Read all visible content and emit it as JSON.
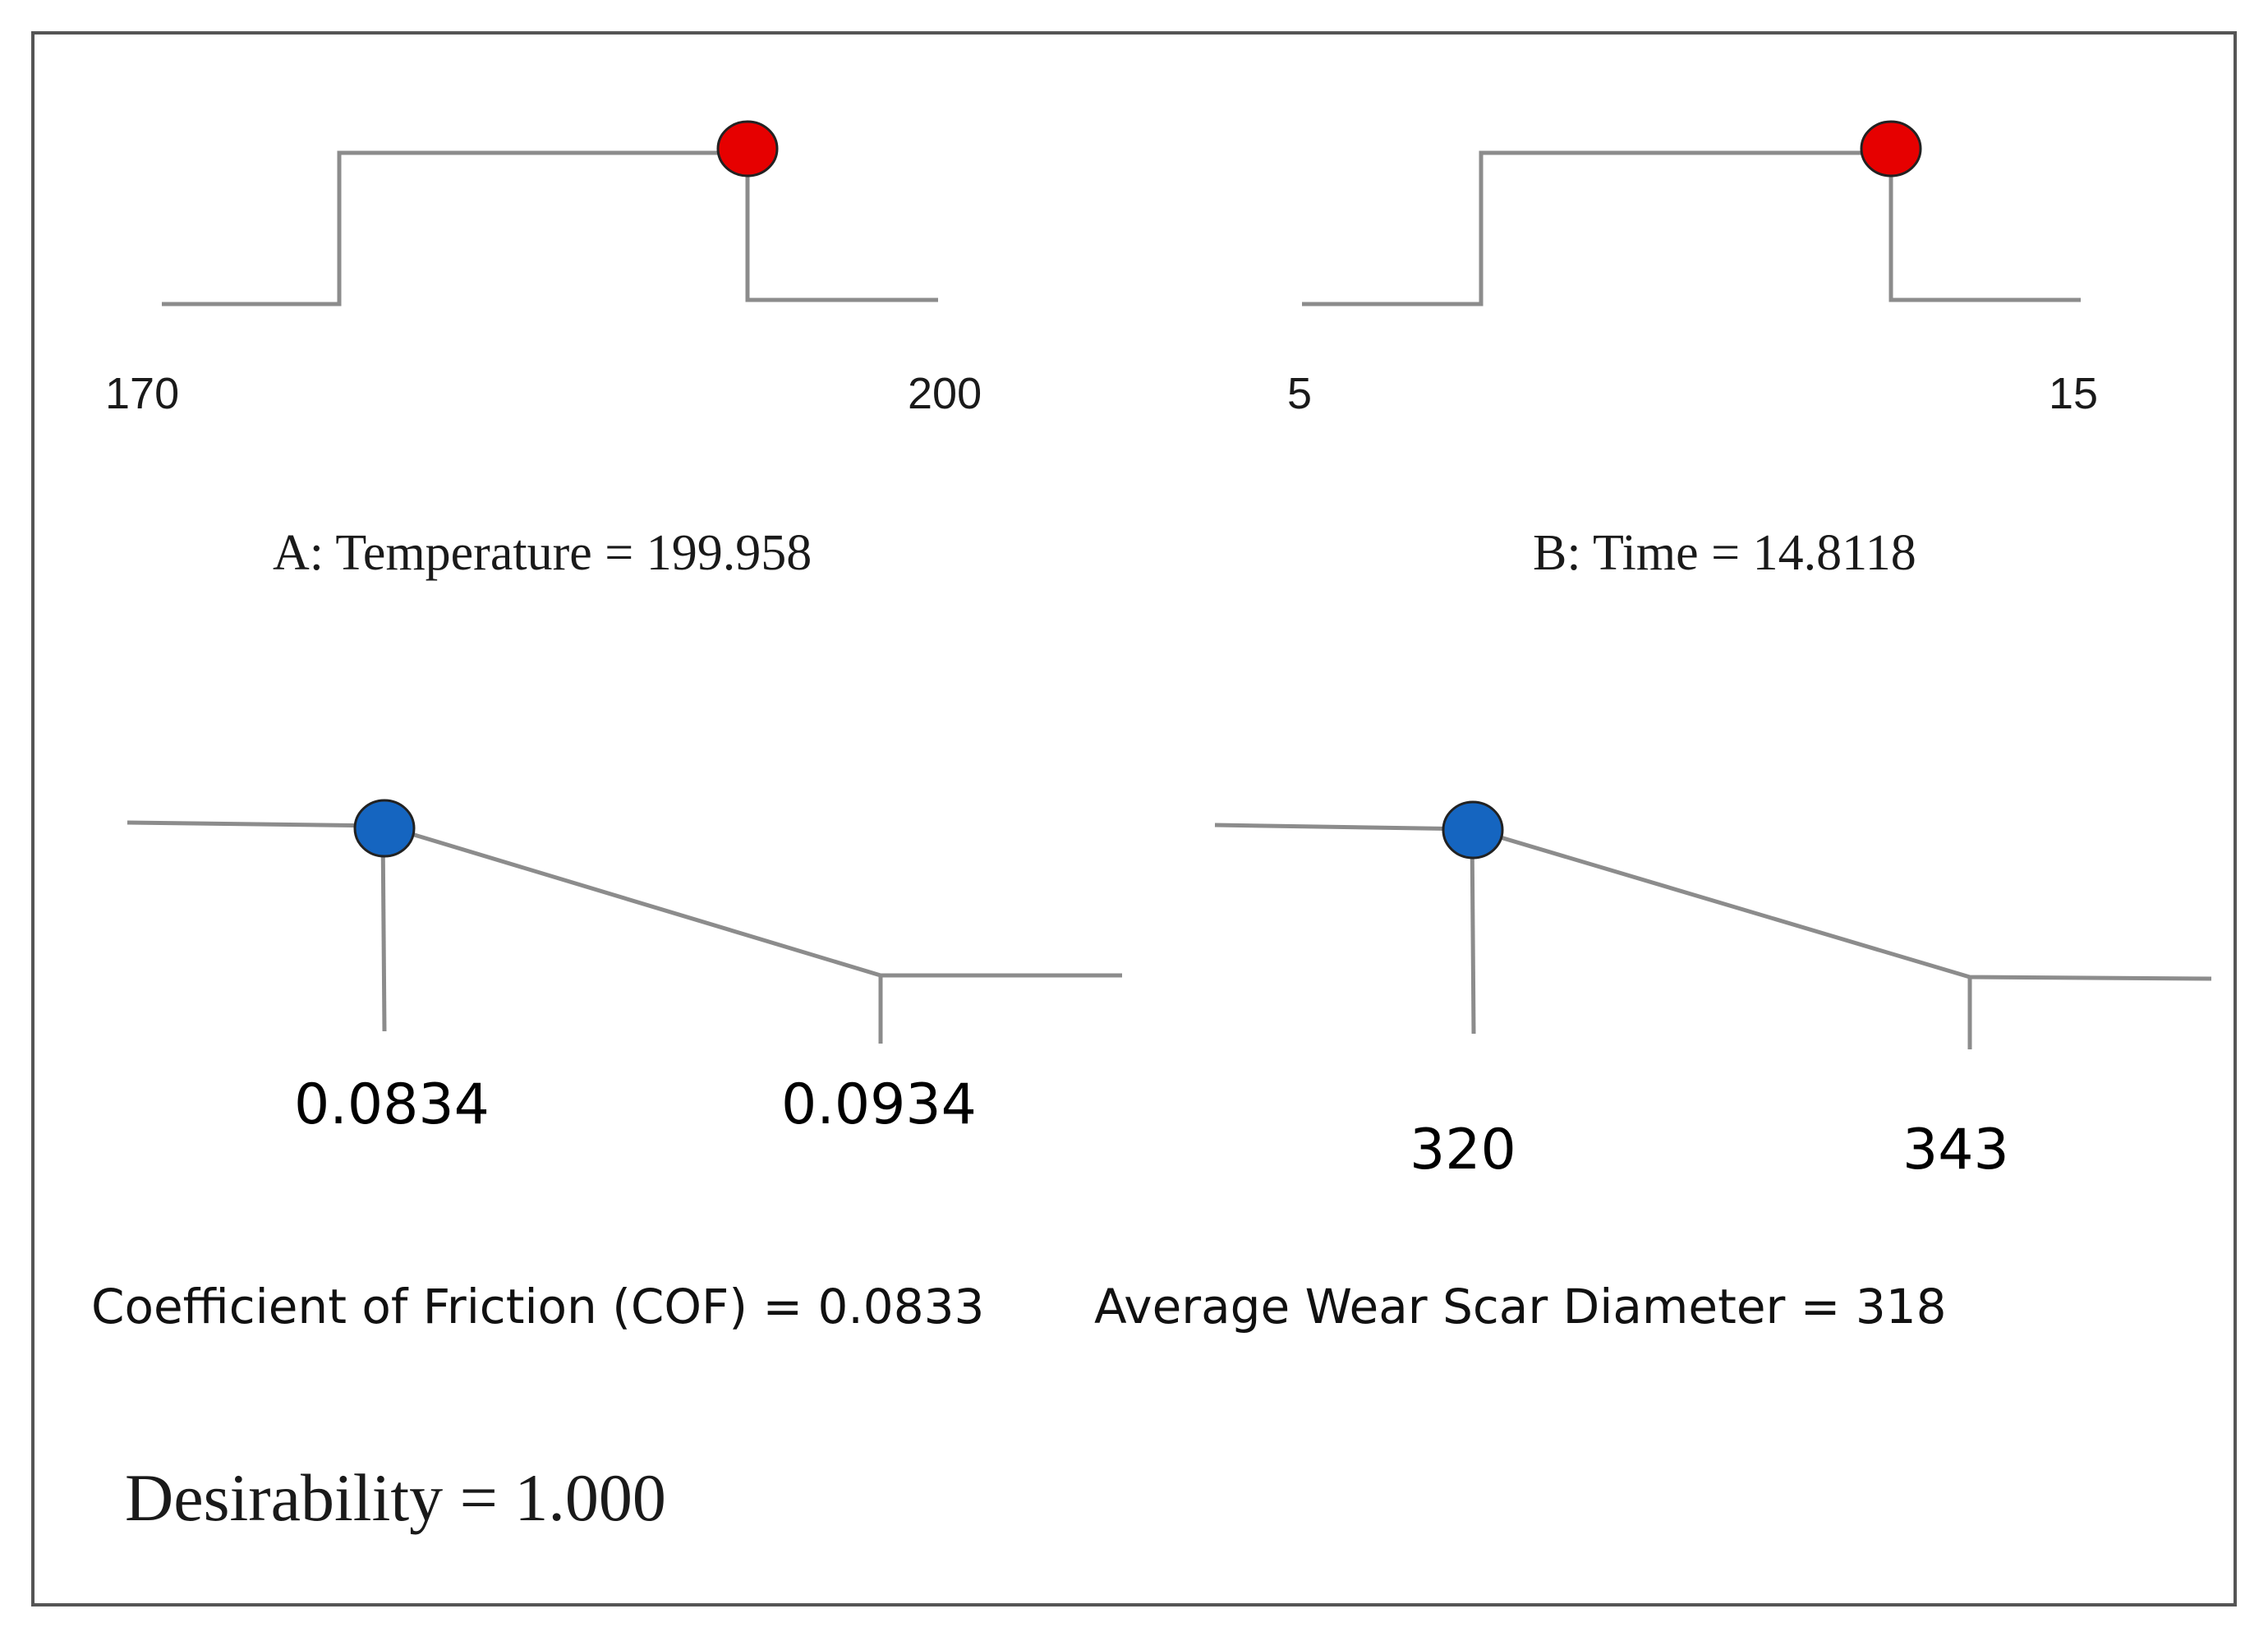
{
  "chart_data": [
    {
      "type": "line",
      "role": "factor",
      "goal": "in range",
      "name": "A: Temperature",
      "solution": 199.958,
      "caption": "A: Temperature = 199.958",
      "range": [
        170,
        200
      ],
      "low_label": "170",
      "high_label": "200",
      "color": "#e60000"
    },
    {
      "type": "line",
      "role": "factor",
      "goal": "in range",
      "name": "B: Time",
      "solution": 14.8118,
      "caption": "B: Time = 14.8118",
      "range": [
        5,
        15
      ],
      "low_label": "5",
      "high_label": "15",
      "color": "#e60000"
    },
    {
      "type": "line",
      "role": "response",
      "goal": "minimize",
      "name": "Coefficient of Friction (COF)",
      "solution": 0.0833,
      "caption": "Coefficient of Friction (COF) = 0.0833",
      "range": [
        0.0834,
        0.0934
      ],
      "low_label": "0.0834",
      "high_label": "0.0934",
      "color": "#1565c0"
    },
    {
      "type": "line",
      "role": "response",
      "goal": "minimize",
      "name": "Average Wear Scar Diameter",
      "solution": 318,
      "caption": "Average Wear Scar Diameter = 318",
      "range": [
        320,
        343
      ],
      "low_label": "320",
      "high_label": "343",
      "color": "#1565c0"
    }
  ],
  "desirability": {
    "value": 1.0,
    "label": "Desirability = 1.000"
  }
}
